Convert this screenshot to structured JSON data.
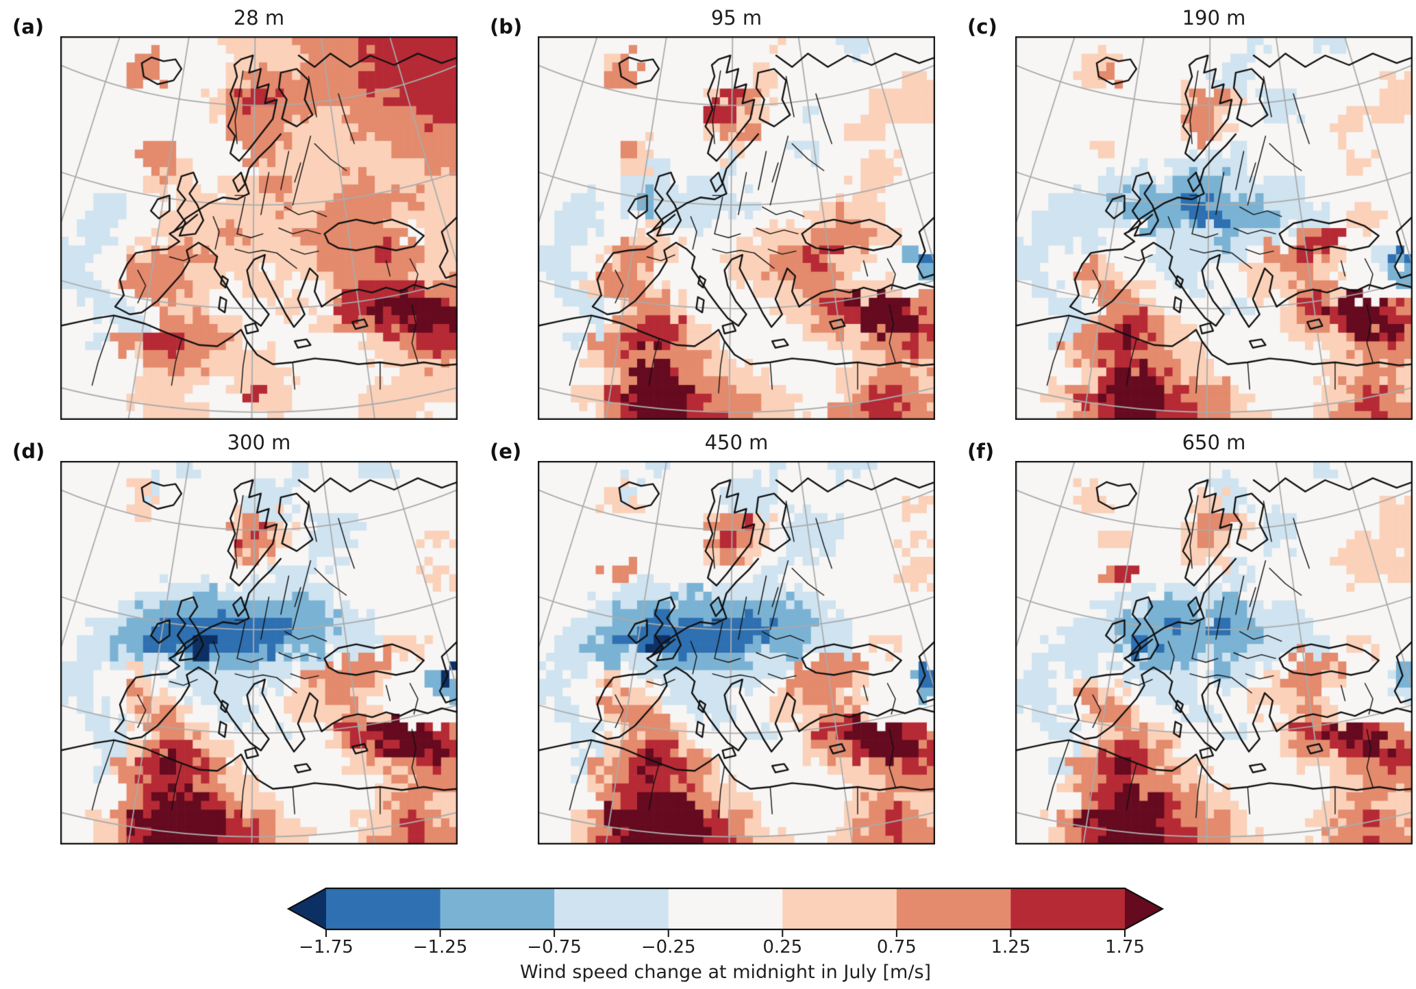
{
  "figure": {
    "kind": "multi-panel geographic heatmap figure",
    "rows": 2,
    "cols": 3,
    "background": "#ffffff"
  },
  "chart_data": {
    "type": "heatmap",
    "subtype": "gridded map of Europe, Lambert-conformal style projection, 2x3 panels",
    "title": "",
    "legend_position": "bottom",
    "grid_shape": {
      "cols": 24,
      "rows": 22
    },
    "grid_encoding": {
      "0": "< -1.75 m/s",
      "1": "-1.75 to -1.25 m/s",
      "2": "-1.25 to -0.75 m/s",
      "3": "-0.75 to -0.25 m/s",
      "4": "-0.25 to 0.25 m/s",
      "5": "0.25 to 0.75 m/s",
      "6": "0.75 to 1.25 m/s",
      "7": "1.25 to 1.75 m/s",
      "8": "> 1.75 m/s"
    },
    "colorbar": {
      "label": "Wind speed change at midnight in July [m/s]",
      "units": "m/s",
      "extend": "both",
      "tick_labels": [
        "−1.75",
        "−1.25",
        "−0.75",
        "−0.25",
        "0.25",
        "0.75",
        "1.25",
        "1.75"
      ],
      "boundaries": [
        -1.75,
        -1.25,
        -0.75,
        -0.25,
        0.25,
        0.75,
        1.25,
        1.75
      ],
      "level_colors": [
        "#0d3064",
        "#2e70b1",
        "#7ab2d4",
        "#cfe3f0",
        "#f7f6f5",
        "#fbd1b9",
        "#e48a6d",
        "#b62a35",
        "#650a1f"
      ],
      "graticule_color": "#ababab",
      "coast_color": "#111111"
    },
    "panels": [
      {
        "label": "(a)",
        "title": "28 m",
        "grid": [
          "444444444455556666777777",
          "444466444455555666677777",
          "444466444456666666777777",
          "444444444567766666667777",
          "444444444566666556666677",
          "444444444466665555666666",
          "444446644446655555556666",
          "444446654444555555555566",
          "444445554455665556655555",
          "443344455555565566666655",
          "433344555555555666665555",
          "433444555565556666666455",
          "334455666555555666676655",
          "334466655555455566666555",
          "433466665545554456777766",
          "443344555444455467788887",
          "444334666554444556677888",
          "443667766654444444556677",
          "444456666555544444455566",
          "444445555455554444445555",
          "444455554447754444555555",
          "444445555444554444555544"
        ]
      },
      {
        "label": "(b)",
        "title": "95 m",
        "grid": [
          "444444444444445444334444",
          "444456444444444444444444",
          "444466444444455444444455",
          "444444444457654444445555",
          "444444444477554434445555",
          "444444444456644444455444",
          "444446544445544334444444",
          "444445534443444444445544",
          "444443334333444444455444",
          "443343233333344444555444",
          "433344433334444455655444",
          "433444554444455566665544",
          "334456655444556677554421",
          "334466544445556666544442",
          "433566654444455566655544",
          "443345665444445567788876",
          "444356777544444456678887",
          "443667876554444445556676",
          "444566666655444444455666",
          "444456887655554444556655",
          "445578888766655444567765",
          "444567888776655544667766"
        ]
      },
      {
        "label": "(c)",
        "title": "190 m",
        "grid": [
          "444444444444443444334444",
          "444455444444434444444444",
          "444456444444334444444455",
          "444444444456654334444455",
          "444444444466544334445555",
          "444444444456544444455444",
          "444445444444434444444444",
          "444444434333334444445544",
          "444443333222233334444444",
          "443333222211222333444444",
          "433333322221122233345544",
          "433334443333233346774444",
          "334454443333334667654431",
          "334465544334445566544442",
          "433456654433445556654444",
          "443345665444434457788876",
          "444356776544444456678887",
          "443667876554444445556676",
          "444566766655444444455666",
          "444457887655544444456655",
          "445678888766654444556765",
          "444567888776655444566766"
        ]
      },
      {
        "label": "(d)",
        "title": "300 m",
        "grid": [
          "444444434444443444334444",
          "444453444443334444444444",
          "444455444443334444444444",
          "444444444456754333444444",
          "444444444467654333444455",
          "444444444456544334444444",
          "444444444444433444444455",
          "444443333233333344444444",
          "444332222222222233444444",
          "443322111111112223344444",
          "433221110111122233345544",
          "433323322222233346664444",
          "334454433333334666654420",
          "334465543334445566544442",
          "433456654433445556654444",
          "443345665444434457788876",
          "444356776544444456678887",
          "443667877654444445556676",
          "444567776655444444455666",
          "444467888765544444456655",
          "445688888876654444556765",
          "445678888877655444566766"
        ]
      },
      {
        "label": "(e)",
        "title": "450 m",
        "grid": [
          "444444434444443444334444",
          "444453444443334444444444",
          "444455444443334444444455",
          "444444444456754333444444",
          "444444444467654333444455",
          "444444444456544334444444",
          "444466444444433444444455",
          "444443333233333344444444",
          "444332222222222233444444",
          "443322111111112223344444",
          "433221101111122233345544",
          "433323322222233346664444",
          "334454433333334666654421",
          "334465543334445566544442",
          "433456654433445556654444",
          "443345665444434457788876",
          "444356776544444456678887",
          "443667877654444445556676",
          "444567776655444444455666",
          "444467888765544444456655",
          "445688888876654444556765",
          "445678888877655444566766"
        ]
      },
      {
        "label": "(f)",
        "title": "650 m",
        "grid": [
          "444444444444444444344444",
          "444454444444334444444444",
          "444455444445534444444455",
          "444444444456654334444455",
          "444445544456544334445555",
          "444444444455544444455554",
          "444446744444434444445555",
          "444444434333334444444444",
          "444443332223223334444444",
          "444333222122122333444444",
          "443333211222223333345544",
          "433334332223233346664444",
          "334454433334334566654432",
          "334465543334445556544443",
          "433456654433445456654444",
          "443345665444434457788766",
          "444356776544444456677887",
          "443667876554444445556676",
          "444567766655444444455666",
          "444467888765544444456655",
          "445688888766654444556765",
          "445678888776655444566766"
        ]
      }
    ]
  }
}
